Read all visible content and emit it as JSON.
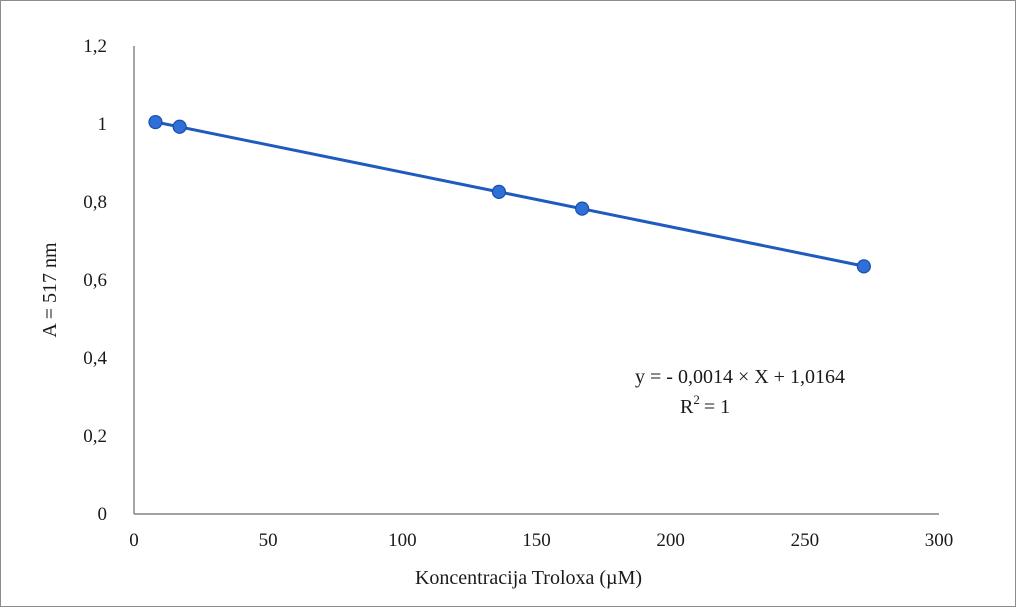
{
  "chart_data": {
    "type": "scatter",
    "title": "",
    "xlabel": "Koncentracija Troloxa (µM)",
    "ylabel": "A = 517 nm",
    "xlim": [
      0,
      300
    ],
    "ylim": [
      0,
      1.2
    ],
    "x_ticks": [
      0,
      50,
      100,
      150,
      200,
      250,
      300
    ],
    "x_tick_labels": [
      "0",
      "50",
      "100",
      "150",
      "200",
      "250",
      "300"
    ],
    "y_ticks": [
      0,
      0.2,
      0.4,
      0.6,
      0.8,
      1.0,
      1.2
    ],
    "y_tick_labels": [
      "0",
      "0,2",
      "0,4",
      "0,6",
      "0,8",
      "1",
      "1,2"
    ],
    "grid": false,
    "legend": "none",
    "series": [
      {
        "color": "#2f6fd8",
        "points": [
          {
            "x": 8,
            "y": 1.005
          },
          {
            "x": 17,
            "y": 0.993
          },
          {
            "x": 136,
            "y": 0.826
          },
          {
            "x": 167,
            "y": 0.783
          },
          {
            "x": 272,
            "y": 0.635
          }
        ]
      }
    ],
    "trendline": {
      "color": "#1f5bbf",
      "slope": -0.0014,
      "intercept": 1.0164,
      "x_range": [
        8,
        272
      ]
    },
    "annotation": {
      "equation": "y = - 0,0014 × X + 1,0164",
      "r_base": "R",
      "r_sup": "2",
      "r_value": "= 1"
    }
  }
}
